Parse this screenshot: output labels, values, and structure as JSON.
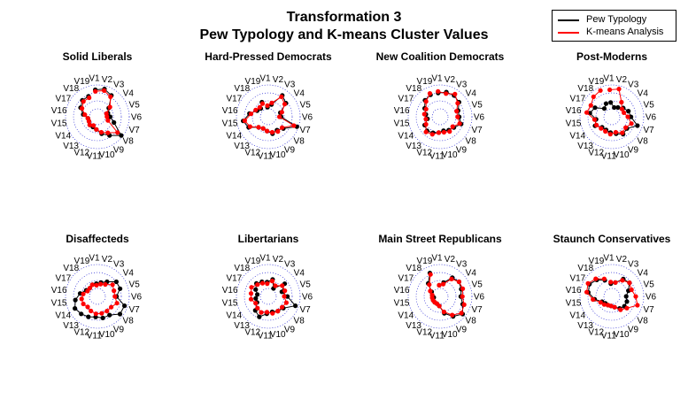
{
  "chart_data": {
    "type": "radar",
    "title": "Transformation 3",
    "subtitle": "Pew Typology and K-means Cluster Values",
    "axis_labels": [
      "V1",
      "V2",
      "V3",
      "V4",
      "V5",
      "V6",
      "V7",
      "V8",
      "V9",
      "V10",
      "V11",
      "V12",
      "V13",
      "V14",
      "V15",
      "V16",
      "V17",
      "V18",
      "V19"
    ],
    "legend": {
      "placement": "top-right",
      "entries": [
        {
          "name": "Pew Typology",
          "color": "#000000"
        },
        {
          "name": "K-means Analysis",
          "color": "#ff0000"
        }
      ]
    },
    "series_colors": {
      "pew": "#000000",
      "kmeans": "#ff0000"
    },
    "grid_color": "#0000cc",
    "panels": [
      {
        "title": "Solid Liberals",
        "pew": [
          0.85,
          0.9,
          0.8,
          0.45,
          0.35,
          0.4,
          0.55,
          0.95,
          0.7,
          0.55,
          0.4,
          0.35,
          0.35,
          0.3,
          0.3,
          0.45,
          0.6,
          0.7,
          0.7
        ],
        "kmeans": [
          0.8,
          0.85,
          0.75,
          0.5,
          0.3,
          0.3,
          0.35,
          0.8,
          0.6,
          0.5,
          0.4,
          0.3,
          0.35,
          0.3,
          0.3,
          0.4,
          0.55,
          0.65,
          0.65
        ]
      },
      {
        "title": "Hard-Pressed Democrats",
        "pew": [
          0.3,
          0.4,
          0.8,
          0.7,
          0.4,
          0.4,
          0.95,
          0.6,
          0.5,
          0.55,
          0.45,
          0.4,
          0.45,
          0.7,
          0.8,
          0.6,
          0.4,
          0.35,
          0.5
        ],
        "kmeans": [
          0.35,
          0.45,
          0.75,
          0.65,
          0.45,
          0.35,
          0.85,
          0.55,
          0.55,
          0.5,
          0.45,
          0.4,
          0.45,
          0.65,
          0.75,
          0.55,
          0.45,
          0.4,
          0.45
        ]
      },
      {
        "title": "New Coalition Democrats",
        "pew": [
          0.75,
          0.8,
          0.8,
          0.75,
          0.6,
          0.6,
          0.7,
          0.55,
          0.5,
          0.45,
          0.5,
          0.55,
          0.6,
          0.55,
          0.4,
          0.45,
          0.55,
          0.7,
          0.75
        ],
        "kmeans": [
          0.8,
          0.75,
          0.85,
          0.7,
          0.55,
          0.55,
          0.65,
          0.5,
          0.55,
          0.5,
          0.5,
          0.6,
          0.65,
          0.5,
          0.45,
          0.5,
          0.5,
          0.65,
          0.8
        ]
      },
      {
        "title": "Post-Moderns",
        "pew": [
          0.45,
          0.3,
          0.35,
          0.45,
          0.55,
          0.6,
          0.85,
          0.6,
          0.65,
          0.55,
          0.5,
          0.45,
          0.45,
          0.6,
          0.5,
          0.7,
          0.6,
          0.35,
          0.45
        ],
        "kmeans": [
          0.85,
          0.9,
          0.55,
          0.4,
          0.4,
          0.5,
          0.65,
          0.55,
          0.6,
          0.5,
          0.55,
          0.5,
          0.5,
          0.55,
          0.55,
          0.8,
          0.75,
          0.85,
          0.9
        ]
      },
      {
        "title": "Disaffecteds",
        "pew": [
          0.4,
          0.45,
          0.55,
          0.75,
          0.75,
          0.6,
          0.9,
          0.9,
          0.7,
          0.7,
          0.65,
          0.7,
          0.75,
          0.8,
          0.7,
          0.55,
          0.4,
          0.35,
          0.4
        ],
        "kmeans": [
          0.35,
          0.4,
          0.45,
          0.6,
          0.55,
          0.55,
          0.65,
          0.55,
          0.55,
          0.55,
          0.55,
          0.5,
          0.45,
          0.5,
          0.5,
          0.45,
          0.35,
          0.35,
          0.4
        ]
      },
      {
        "title": "Libertarians",
        "pew": [
          0.45,
          0.55,
          0.3,
          0.65,
          0.45,
          0.6,
          0.9,
          0.6,
          0.55,
          0.5,
          0.55,
          0.7,
          0.6,
          0.4,
          0.4,
          0.35,
          0.45,
          0.55,
          0.5
        ],
        "kmeans": [
          0.4,
          0.5,
          0.4,
          0.55,
          0.55,
          0.5,
          0.6,
          0.55,
          0.55,
          0.55,
          0.5,
          0.55,
          0.5,
          0.45,
          0.55,
          0.55,
          0.6,
          0.5,
          0.45
        ]
      },
      {
        "title": "Main Street Republicans",
        "pew": [
          0.35,
          0.45,
          0.7,
          0.75,
          0.7,
          0.65,
          0.75,
          0.9,
          0.75,
          0.55,
          0.3,
          0.25,
          0.25,
          0.25,
          0.2,
          0.25,
          0.3,
          0.55,
          0.8
        ],
        "kmeans": [
          0.35,
          0.4,
          0.65,
          0.75,
          0.75,
          0.7,
          0.8,
          0.85,
          0.7,
          0.5,
          0.3,
          0.25,
          0.25,
          0.25,
          0.25,
          0.25,
          0.35,
          0.5,
          0.75
        ]
      },
      {
        "title": "Staunch Conservatives",
        "pew": [
          0.4,
          0.45,
          0.65,
          0.7,
          0.55,
          0.45,
          0.5,
          0.5,
          0.45,
          0.35,
          0.3,
          0.3,
          0.3,
          0.35,
          0.55,
          0.75,
          0.8,
          0.7,
          0.55
        ],
        "kmeans": [
          0.45,
          0.45,
          0.6,
          0.7,
          0.65,
          0.75,
          0.85,
          0.6,
          0.5,
          0.35,
          0.3,
          0.3,
          0.35,
          0.4,
          0.6,
          0.8,
          0.85,
          0.75,
          0.6
        ]
      }
    ]
  }
}
